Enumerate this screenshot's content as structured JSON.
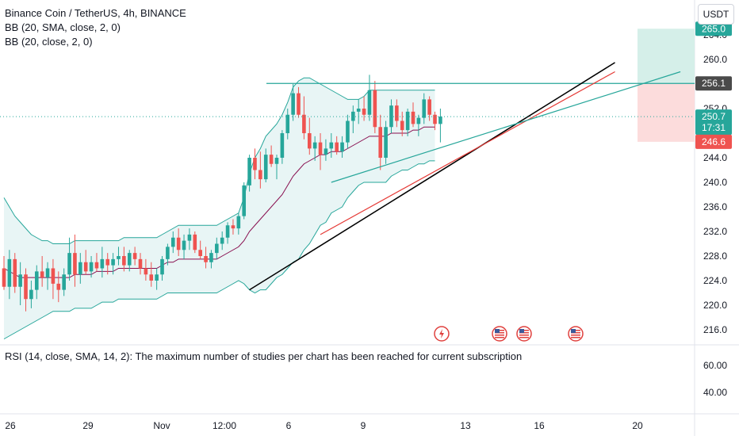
{
  "header": {
    "symbol": "Binance Coin / TetherUS, 4h, BINANCE",
    "bb1": "BB (20, SMA, close, 2, 0)",
    "bb2": "BB (20, close, 2, 0)",
    "currency_button": "USDT"
  },
  "rsi_panel": {
    "message": "RSI (14, close, SMA, 14, 2): The maximum number of studies per chart has been reached for current subscription",
    "ticks": [
      "60.00",
      "40.00"
    ]
  },
  "price_labels": {
    "top_partial": "265.0",
    "resistance": "256.1",
    "current": "250.7",
    "countdown": "17:31",
    "stop": "246.6"
  },
  "colors": {
    "up": "#26a69a",
    "down": "#ef5350",
    "band_fill": "#e0f2f1",
    "band_line": "#26a69a",
    "basis": "#880e4f",
    "trend_black": "#000000",
    "trend_red": "#e53935",
    "trend_teal": "#26a69a",
    "profit_zone": "#d5efe9",
    "loss_zone": "#fcdcdc"
  },
  "chart_data": {
    "type": "candlestick",
    "title": "Binance Coin / TetherUS, 4h, BINANCE",
    "y_ticks": [
      264,
      260,
      256,
      252,
      248,
      244,
      240,
      236,
      232,
      228,
      224,
      220,
      216
    ],
    "x_ticks": [
      "26",
      "29",
      "Nov",
      "12:00",
      "6",
      "9",
      "13",
      "16",
      "20"
    ],
    "ylim": [
      212.5,
      266.5
    ],
    "grid": false,
    "candles": [
      [
        226.0,
        228.0,
        222.5,
        223.0
      ],
      [
        223.0,
        229.0,
        221.0,
        227.5
      ],
      [
        227.5,
        228.5,
        222.0,
        223.0
      ],
      [
        223.0,
        227.0,
        220.0,
        225.0
      ],
      [
        225.0,
        226.0,
        219.0,
        221.0
      ],
      [
        221.0,
        224.0,
        219.5,
        222.5
      ],
      [
        222.5,
        226.5,
        221.0,
        225.5
      ],
      [
        225.5,
        228.0,
        223.0,
        224.5
      ],
      [
        224.5,
        227.0,
        222.5,
        226.0
      ],
      [
        226.0,
        227.5,
        221.0,
        223.5
      ],
      [
        223.5,
        225.5,
        220.5,
        222.5
      ],
      [
        222.5,
        226.0,
        221.5,
        225.0
      ],
      [
        225.0,
        231.0,
        224.0,
        228.5
      ],
      [
        228.5,
        231.5,
        223.0,
        225.0
      ],
      [
        225.0,
        228.5,
        223.5,
        227.0
      ],
      [
        227.0,
        229.0,
        225.0,
        225.5
      ],
      [
        225.5,
        228.0,
        224.5,
        227.0
      ],
      [
        227.0,
        228.5,
        225.5,
        226.0
      ],
      [
        226.0,
        229.5,
        224.5,
        227.5
      ],
      [
        227.5,
        228.5,
        225.0,
        226.5
      ],
      [
        226.5,
        228.5,
        225.0,
        227.5
      ],
      [
        227.5,
        229.5,
        226.5,
        228.0
      ],
      [
        228.0,
        229.5,
        225.5,
        226.5
      ],
      [
        226.5,
        229.0,
        225.5,
        228.5
      ],
      [
        228.5,
        229.5,
        226.5,
        227.5
      ],
      [
        227.5,
        228.5,
        225.0,
        226.0
      ],
      [
        226.0,
        227.5,
        224.0,
        225.0
      ],
      [
        225.0,
        227.0,
        223.0,
        224.0
      ],
      [
        224.0,
        226.0,
        222.5,
        225.0
      ],
      [
        225.0,
        228.0,
        224.0,
        227.5
      ],
      [
        227.5,
        230.0,
        226.5,
        229.5
      ],
      [
        229.5,
        232.0,
        228.5,
        231.0
      ],
      [
        231.0,
        232.5,
        228.0,
        229.0
      ],
      [
        229.0,
        231.5,
        227.5,
        230.5
      ],
      [
        230.5,
        232.5,
        229.0,
        231.5
      ],
      [
        231.5,
        232.0,
        228.5,
        229.0
      ],
      [
        229.0,
        230.5,
        227.5,
        228.0
      ],
      [
        228.0,
        229.5,
        226.0,
        227.0
      ],
      [
        227.0,
        229.0,
        226.0,
        228.5
      ],
      [
        228.5,
        231.0,
        227.5,
        230.0
      ],
      [
        230.0,
        232.0,
        229.0,
        231.0
      ],
      [
        231.0,
        233.5,
        230.0,
        233.0
      ],
      [
        233.0,
        234.0,
        231.5,
        232.5
      ],
      [
        232.5,
        235.0,
        231.5,
        234.5
      ],
      [
        234.5,
        240.0,
        234.0,
        239.5
      ],
      [
        239.5,
        244.5,
        238.5,
        244.0
      ],
      [
        244.0,
        245.5,
        240.5,
        242.0
      ],
      [
        242.0,
        245.0,
        239.0,
        240.5
      ],
      [
        240.5,
        245.5,
        240.0,
        244.5
      ],
      [
        244.5,
        246.0,
        242.5,
        243.0
      ],
      [
        243.0,
        244.5,
        240.5,
        244.0
      ],
      [
        244.0,
        248.5,
        243.0,
        248.0
      ],
      [
        248.0,
        252.0,
        247.0,
        251.0
      ],
      [
        251.0,
        256.0,
        250.0,
        254.5
      ],
      [
        254.5,
        255.5,
        250.5,
        251.0
      ],
      [
        251.0,
        254.0,
        247.0,
        248.0
      ],
      [
        248.0,
        250.5,
        244.5,
        245.5
      ],
      [
        245.5,
        247.5,
        243.5,
        246.5
      ],
      [
        246.5,
        248.0,
        242.0,
        244.5
      ],
      [
        244.5,
        247.0,
        243.5,
        245.5
      ],
      [
        245.5,
        248.0,
        244.0,
        246.5
      ],
      [
        246.5,
        247.5,
        244.5,
        245.0
      ],
      [
        245.0,
        247.5,
        244.0,
        246.5
      ],
      [
        246.5,
        251.0,
        245.5,
        250.0
      ],
      [
        250.0,
        252.5,
        248.0,
        251.5
      ],
      [
        251.5,
        253.5,
        249.5,
        252.0
      ],
      [
        252.0,
        254.0,
        250.0,
        251.0
      ],
      [
        251.0,
        257.5,
        250.0,
        255.0
      ],
      [
        255.0,
        256.5,
        248.0,
        249.0
      ],
      [
        249.0,
        251.0,
        242.0,
        244.0
      ],
      [
        244.0,
        250.0,
        243.0,
        249.0
      ],
      [
        249.0,
        253.5,
        248.0,
        252.5
      ],
      [
        252.5,
        253.5,
        249.0,
        250.0
      ],
      [
        250.0,
        251.5,
        247.5,
        248.5
      ],
      [
        248.5,
        252.0,
        247.5,
        251.5
      ],
      [
        251.5,
        253.0,
        249.0,
        249.5
      ],
      [
        249.5,
        251.0,
        247.5,
        250.5
      ],
      [
        250.5,
        254.5,
        249.5,
        253.5
      ],
      [
        253.5,
        254.0,
        250.0,
        251.0
      ],
      [
        251.0,
        251.5,
        248.5,
        249.5
      ],
      [
        249.5,
        252.0,
        246.5,
        250.7
      ]
    ],
    "bollinger": {
      "upper": [
        237.5,
        236.0,
        234.5,
        233.5,
        232.5,
        231.5,
        231.0,
        230.5,
        230.5,
        230.0,
        230.0,
        230.0,
        230.0,
        230.5,
        230.5,
        230.5,
        230.5,
        230.5,
        230.5,
        230.5,
        230.5,
        230.5,
        231.0,
        231.0,
        231.0,
        231.0,
        231.0,
        231.0,
        231.0,
        231.5,
        232.0,
        232.5,
        233.0,
        233.0,
        233.0,
        233.0,
        233.0,
        233.0,
        233.0,
        233.0,
        233.5,
        234.0,
        234.5,
        235.0,
        237.5,
        241.5,
        244.0,
        245.5,
        247.5,
        248.5,
        249.5,
        251.0,
        253.0,
        255.5,
        256.5,
        257.0,
        257.0,
        256.5,
        256.0,
        255.5,
        255.0,
        254.5,
        254.0,
        253.5,
        253.5,
        253.5,
        254.0,
        255.0,
        255.0,
        255.0,
        255.0,
        255.0,
        255.0,
        255.0,
        255.0,
        255.0,
        255.0,
        255.0,
        255.0,
        255.0
      ],
      "basis": [
        226.0,
        225.5,
        225.0,
        224.5,
        224.5,
        224.5,
        224.5,
        224.5,
        224.5,
        224.5,
        224.5,
        224.5,
        224.5,
        225.0,
        225.0,
        225.0,
        225.0,
        225.5,
        225.5,
        225.5,
        225.5,
        226.0,
        226.0,
        226.0,
        226.0,
        226.0,
        226.0,
        226.0,
        226.0,
        226.5,
        227.0,
        227.0,
        227.5,
        227.5,
        227.5,
        227.5,
        227.5,
        227.5,
        227.5,
        227.5,
        228.0,
        228.5,
        229.0,
        229.5,
        230.5,
        232.0,
        233.0,
        234.0,
        235.0,
        236.0,
        237.0,
        238.0,
        239.5,
        241.0,
        242.0,
        243.0,
        243.5,
        244.0,
        244.5,
        244.5,
        245.0,
        245.0,
        245.0,
        245.5,
        246.0,
        246.5,
        247.0,
        247.5,
        247.5,
        247.5,
        247.5,
        248.0,
        248.0,
        248.0,
        248.0,
        248.5,
        248.5,
        249.0,
        249.0,
        249.0
      ],
      "lower": [
        214.5,
        215.0,
        215.5,
        216.0,
        216.5,
        217.0,
        217.5,
        218.0,
        218.5,
        219.0,
        219.0,
        219.0,
        219.0,
        219.5,
        219.5,
        219.5,
        219.5,
        220.0,
        220.5,
        220.5,
        220.5,
        221.0,
        221.0,
        221.0,
        221.0,
        221.0,
        221.0,
        221.0,
        221.0,
        221.5,
        222.0,
        222.0,
        222.0,
        222.0,
        222.0,
        222.0,
        222.0,
        222.0,
        222.0,
        222.0,
        222.5,
        223.0,
        223.5,
        224.0,
        223.5,
        222.5,
        222.0,
        222.5,
        222.5,
        223.5,
        224.5,
        225.0,
        226.0,
        227.0,
        227.5,
        229.0,
        230.0,
        231.5,
        233.0,
        233.5,
        235.0,
        235.5,
        236.0,
        237.5,
        238.5,
        239.5,
        240.0,
        240.0,
        240.0,
        240.0,
        240.0,
        241.0,
        241.5,
        242.0,
        242.0,
        242.5,
        243.0,
        243.0,
        243.5,
        243.5
      ]
    },
    "drawings": {
      "resistance_level": 256.1,
      "black_trend": {
        "from": [
          45,
          222.5
        ],
        "to": [
          112,
          259.5
        ]
      },
      "red_trend": {
        "from": [
          58,
          231.5
        ],
        "to": [
          112,
          258.0
        ]
      },
      "teal_trend": {
        "from": [
          60,
          240.0
        ],
        "to": [
          124,
          258.0
        ]
      },
      "short_position": {
        "entry": 256.1,
        "target": 265.0,
        "stop": 246.6
      }
    },
    "events": [
      "lightning",
      "us-flag",
      "us-flag",
      "us-flag"
    ]
  }
}
